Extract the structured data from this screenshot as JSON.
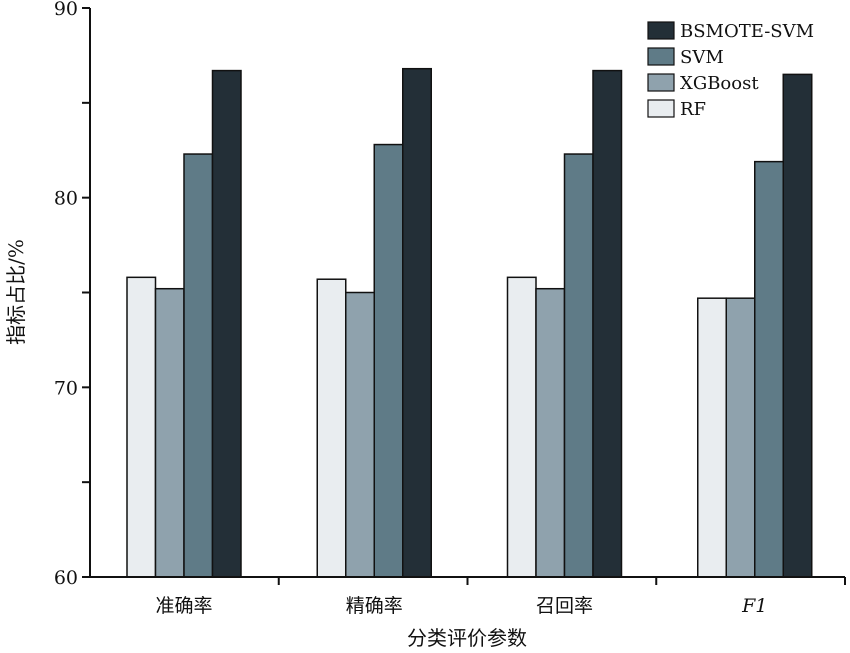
{
  "chart_data": {
    "type": "bar",
    "title": "",
    "xlabel": "分类评价参数",
    "ylabel": "指标占比/%",
    "ylim": [
      60,
      90
    ],
    "yticks": [
      60,
      70,
      80,
      90
    ],
    "grid": false,
    "legend_position": "top-right",
    "categories": [
      "准确率",
      "精确率",
      "召回率",
      "F1"
    ],
    "series": [
      {
        "name": "RF",
        "color": "#e9edf0",
        "values": [
          75.8,
          75.7,
          75.8,
          74.7
        ]
      },
      {
        "name": "XGBoost",
        "color": "#8fa2ad",
        "values": [
          75.2,
          75.0,
          75.2,
          74.7
        ]
      },
      {
        "name": "SVM",
        "color": "#5f7b87",
        "values": [
          82.3,
          82.8,
          82.3,
          81.9
        ]
      },
      {
        "name": "BSMOTE-SVM",
        "color": "#232f37",
        "values": [
          86.7,
          86.8,
          86.7,
          86.5
        ]
      }
    ],
    "legend_order": [
      "BSMOTE-SVM",
      "SVM",
      "XGBoost",
      "RF"
    ]
  }
}
